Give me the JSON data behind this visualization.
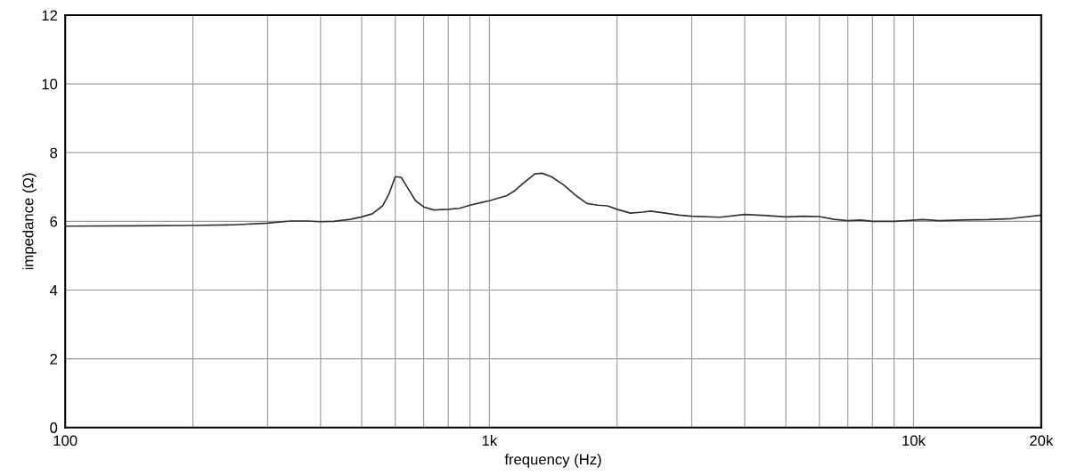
{
  "chart_data": {
    "type": "line",
    "xlabel": "frequency (Hz)",
    "ylabel": "impedance (Ω)",
    "log": "x",
    "grid": true,
    "marker": "none",
    "line_style": "solid",
    "xlim": [
      100,
      20000
    ],
    "ylim": [
      0,
      12
    ],
    "yticks": [
      0,
      2,
      4,
      6,
      8,
      10,
      12
    ],
    "xticks": [
      {
        "value": 100,
        "label": "100"
      },
      {
        "value": 200,
        "label": null
      },
      {
        "value": 300,
        "label": null
      },
      {
        "value": 400,
        "label": null
      },
      {
        "value": 500,
        "label": null
      },
      {
        "value": 600,
        "label": null
      },
      {
        "value": 700,
        "label": null
      },
      {
        "value": 800,
        "label": null
      },
      {
        "value": 900,
        "label": null
      },
      {
        "value": 1000,
        "label": "1k"
      },
      {
        "value": 2000,
        "label": null
      },
      {
        "value": 3000,
        "label": null
      },
      {
        "value": 4000,
        "label": null
      },
      {
        "value": 5000,
        "label": null
      },
      {
        "value": 6000,
        "label": null
      },
      {
        "value": 7000,
        "label": null
      },
      {
        "value": 8000,
        "label": null
      },
      {
        "value": 9000,
        "label": null
      },
      {
        "value": 10000,
        "label": "10k"
      },
      {
        "value": 20000,
        "label": "20k"
      }
    ],
    "x": [
      100,
      150,
      200,
      250,
      300,
      340,
      370,
      400,
      430,
      470,
      500,
      530,
      560,
      580,
      600,
      620,
      640,
      670,
      700,
      740,
      800,
      850,
      900,
      960,
      1000,
      1100,
      1150,
      1200,
      1280,
      1330,
      1400,
      1500,
      1600,
      1700,
      1800,
      1900,
      2000,
      2150,
      2300,
      2400,
      2600,
      2800,
      3000,
      3500,
      4000,
      4500,
      5000,
      5500,
      6000,
      6500,
      7000,
      7500,
      8000,
      9000,
      10500,
      11500,
      13000,
      15000,
      17000,
      20000
    ],
    "series": [
      {
        "color": "#333333",
        "values": [
          5.86,
          5.87,
          5.88,
          5.9,
          5.95,
          6.01,
          6.01,
          5.99,
          6.0,
          6.06,
          6.13,
          6.22,
          6.45,
          6.8,
          7.3,
          7.28,
          7.0,
          6.6,
          6.42,
          6.33,
          6.35,
          6.38,
          6.47,
          6.55,
          6.6,
          6.75,
          6.9,
          7.1,
          7.38,
          7.4,
          7.3,
          7.05,
          6.75,
          6.52,
          6.47,
          6.45,
          6.35,
          6.24,
          6.27,
          6.3,
          6.24,
          6.18,
          6.15,
          6.12,
          6.2,
          6.17,
          6.13,
          6.15,
          6.14,
          6.06,
          6.02,
          6.04,
          6.0,
          6.0,
          6.05,
          6.02,
          6.04,
          6.05,
          6.08,
          6.18
        ]
      }
    ]
  }
}
